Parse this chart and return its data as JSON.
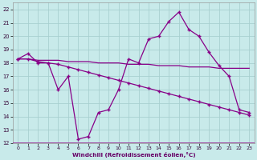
{
  "xlabel": "Windchill (Refroidissement éolien,°C)",
  "xlim": [
    -0.5,
    23.5
  ],
  "ylim": [
    12,
    22.5
  ],
  "xticks": [
    0,
    1,
    2,
    3,
    4,
    5,
    6,
    7,
    8,
    9,
    10,
    11,
    12,
    13,
    14,
    15,
    16,
    17,
    18,
    19,
    20,
    21,
    22,
    23
  ],
  "yticks": [
    12,
    13,
    14,
    15,
    16,
    17,
    18,
    19,
    20,
    21,
    22
  ],
  "bg_color": "#c8eaea",
  "line_color": "#880088",
  "grid_color": "#a8d0d0",
  "line1_x": [
    0,
    1,
    2,
    3,
    4,
    5,
    6,
    7,
    8,
    9,
    10,
    11,
    12,
    13,
    14,
    15,
    16,
    17,
    18,
    19,
    20,
    21,
    22,
    23
  ],
  "line1_y": [
    18.3,
    18.7,
    18.0,
    18.0,
    16.0,
    17.0,
    12.3,
    12.5,
    14.3,
    14.5,
    16.0,
    18.3,
    18.0,
    19.8,
    20.0,
    21.1,
    21.8,
    20.5,
    20.0,
    18.8,
    17.8,
    17.0,
    14.5,
    14.3
  ],
  "line2_x": [
    0,
    1,
    2,
    3,
    4,
    5,
    6,
    7,
    8,
    9,
    10,
    11,
    12,
    13,
    14,
    15,
    16,
    17,
    18,
    19,
    20,
    21,
    22,
    23
  ],
  "line2_y": [
    18.3,
    18.3,
    18.2,
    18.2,
    18.2,
    18.1,
    18.1,
    18.1,
    18.0,
    18.0,
    18.0,
    17.9,
    17.9,
    17.9,
    17.8,
    17.8,
    17.8,
    17.7,
    17.7,
    17.7,
    17.6,
    17.6,
    17.6,
    17.6
  ],
  "line3_x": [
    0,
    1,
    2,
    3,
    4,
    5,
    6,
    7,
    8,
    9,
    10,
    11,
    12,
    13,
    14,
    15,
    16,
    17,
    18,
    19,
    20,
    21,
    22,
    23
  ],
  "line3_y": [
    18.3,
    18.3,
    18.1,
    18.0,
    17.9,
    17.7,
    17.5,
    17.3,
    17.1,
    16.9,
    16.7,
    16.5,
    16.3,
    16.1,
    15.9,
    15.7,
    15.5,
    15.3,
    15.1,
    14.9,
    14.7,
    14.5,
    14.3,
    14.1
  ]
}
